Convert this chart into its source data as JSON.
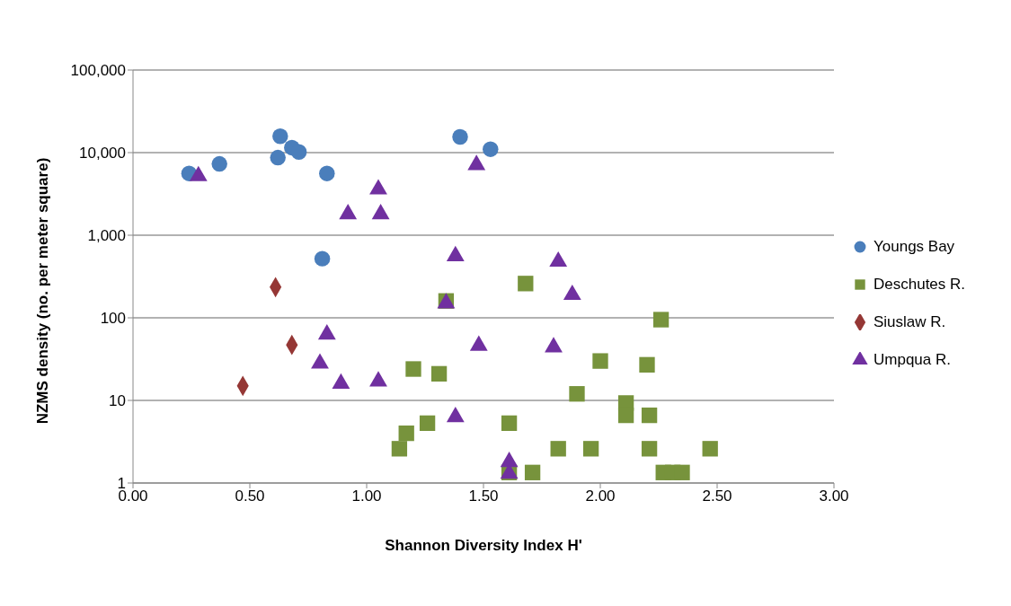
{
  "chart_data": {
    "type": "scatter",
    "xlabel": "Shannon Diversity Index H'",
    "ylabel": "NZMS density (no. per meter square)",
    "xlim": [
      0,
      3
    ],
    "xticks": [
      {
        "value": 0,
        "label": "0.00"
      },
      {
        "value": 0.5,
        "label": "0.50"
      },
      {
        "value": 1,
        "label": "1.00"
      },
      {
        "value": 1.5,
        "label": "1.50"
      },
      {
        "value": 2,
        "label": "2.00"
      },
      {
        "value": 2.5,
        "label": "2.50"
      },
      {
        "value": 3,
        "label": "3.00"
      }
    ],
    "ylim": [
      1,
      100000
    ],
    "yticks": [
      1,
      10,
      {
        "value": 100,
        "label": "100"
      },
      {
        "value": 1000,
        "label": "1,000"
      },
      {
        "value": 10000,
        "label": "10,000"
      },
      {
        "value": 100000,
        "label": "100,000"
      }
    ],
    "log": "y",
    "grid": "y",
    "legend": "right",
    "series": [
      {
        "name": "Youngs Bay",
        "color": "#4a7ebb",
        "marker": "circle",
        "x": [
          0.24,
          0.37,
          0.63,
          0.62,
          0.68,
          0.71,
          0.83,
          0.81,
          1.4,
          1.53
        ],
        "values": [
          5600,
          7300,
          15800,
          8700,
          11500,
          10200,
          5600,
          520,
          15500,
          11000
        ]
      },
      {
        "name": "Deschutes R.",
        "color": "#77933c",
        "marker": "square",
        "x": [
          1.68,
          1.34,
          2.26,
          2.0,
          2.2,
          1.2,
          1.31,
          1.9,
          2.11,
          2.11,
          2.21,
          1.26,
          1.61,
          1.17,
          1.14,
          1.82,
          1.96,
          2.21,
          2.47,
          1.61,
          1.71,
          2.27,
          2.31,
          2.35
        ],
        "values": [
          260,
          160,
          95,
          30,
          27,
          24,
          21,
          12,
          9.3,
          6.6,
          6.6,
          5.3,
          5.3,
          4,
          2.6,
          2.6,
          2.6,
          2.6,
          2.6,
          1.34,
          1.34,
          1.34,
          1.34,
          1.34
        ]
      },
      {
        "name": "Siuslaw R.",
        "color": "#953735",
        "marker": "diamond",
        "x": [
          0.61,
          0.68,
          0.47
        ],
        "values": [
          235,
          47,
          15
        ]
      },
      {
        "name": "Umpqua R.",
        "color": "#7030a0",
        "marker": "triangle",
        "x": [
          0.28,
          1.05,
          0.92,
          1.06,
          1.47,
          1.38,
          1.82,
          1.88,
          1.34,
          1.48,
          1.8,
          0.83,
          0.8,
          0.89,
          1.05,
          1.38,
          1.61,
          1.61
        ],
        "values": [
          5200,
          3600,
          1800,
          1800,
          7100,
          560,
          480,
          190,
          150,
          46,
          44,
          63,
          28,
          16,
          17,
          6.3,
          1.8,
          1.3
        ]
      }
    ]
  }
}
